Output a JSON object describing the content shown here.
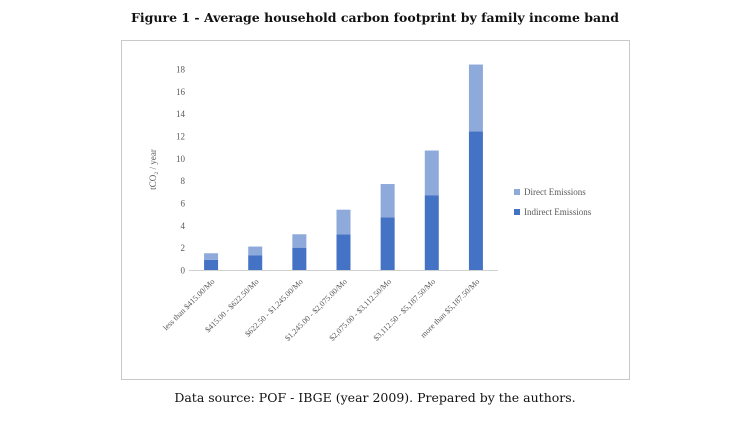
{
  "figure": {
    "title": "Figure 1 - Average household carbon footprint by family income band",
    "caption": "Data source: POF - IBGE (year 2009). Prepared by the authors."
  },
  "chart_data": {
    "type": "bar",
    "stacked": true,
    "title": "",
    "xlabel": "",
    "ylabel": "tCO₂ / year",
    "ylim": [
      0,
      18
    ],
    "yticks": [
      0,
      2,
      4,
      6,
      8,
      10,
      12,
      14,
      16,
      18
    ],
    "grid": false,
    "legend_position": "right",
    "categories": [
      "less than $415.00/Mo",
      "$415.00 - $622.50/Mo",
      "$622.50 - $1,245.00/Mo",
      "$1,245.00 - $2,075.00/Mo",
      "$2,075.00 - $3,112.50/Mo",
      "$3,112.50 - $5,187.50/Mo",
      "more than $5,187.50/Mo"
    ],
    "series": [
      {
        "name": "Indirect Emissions",
        "color": "#4472c4",
        "values": [
          0.9,
          1.3,
          2.0,
          3.2,
          4.7,
          6.7,
          12.4
        ]
      },
      {
        "name": "Direct Emissions",
        "color": "#8eaadb",
        "values": [
          0.6,
          0.8,
          1.2,
          2.2,
          3.0,
          4.0,
          6.0
        ]
      }
    ],
    "legend_order": [
      "Direct Emissions",
      "Indirect Emissions"
    ]
  }
}
